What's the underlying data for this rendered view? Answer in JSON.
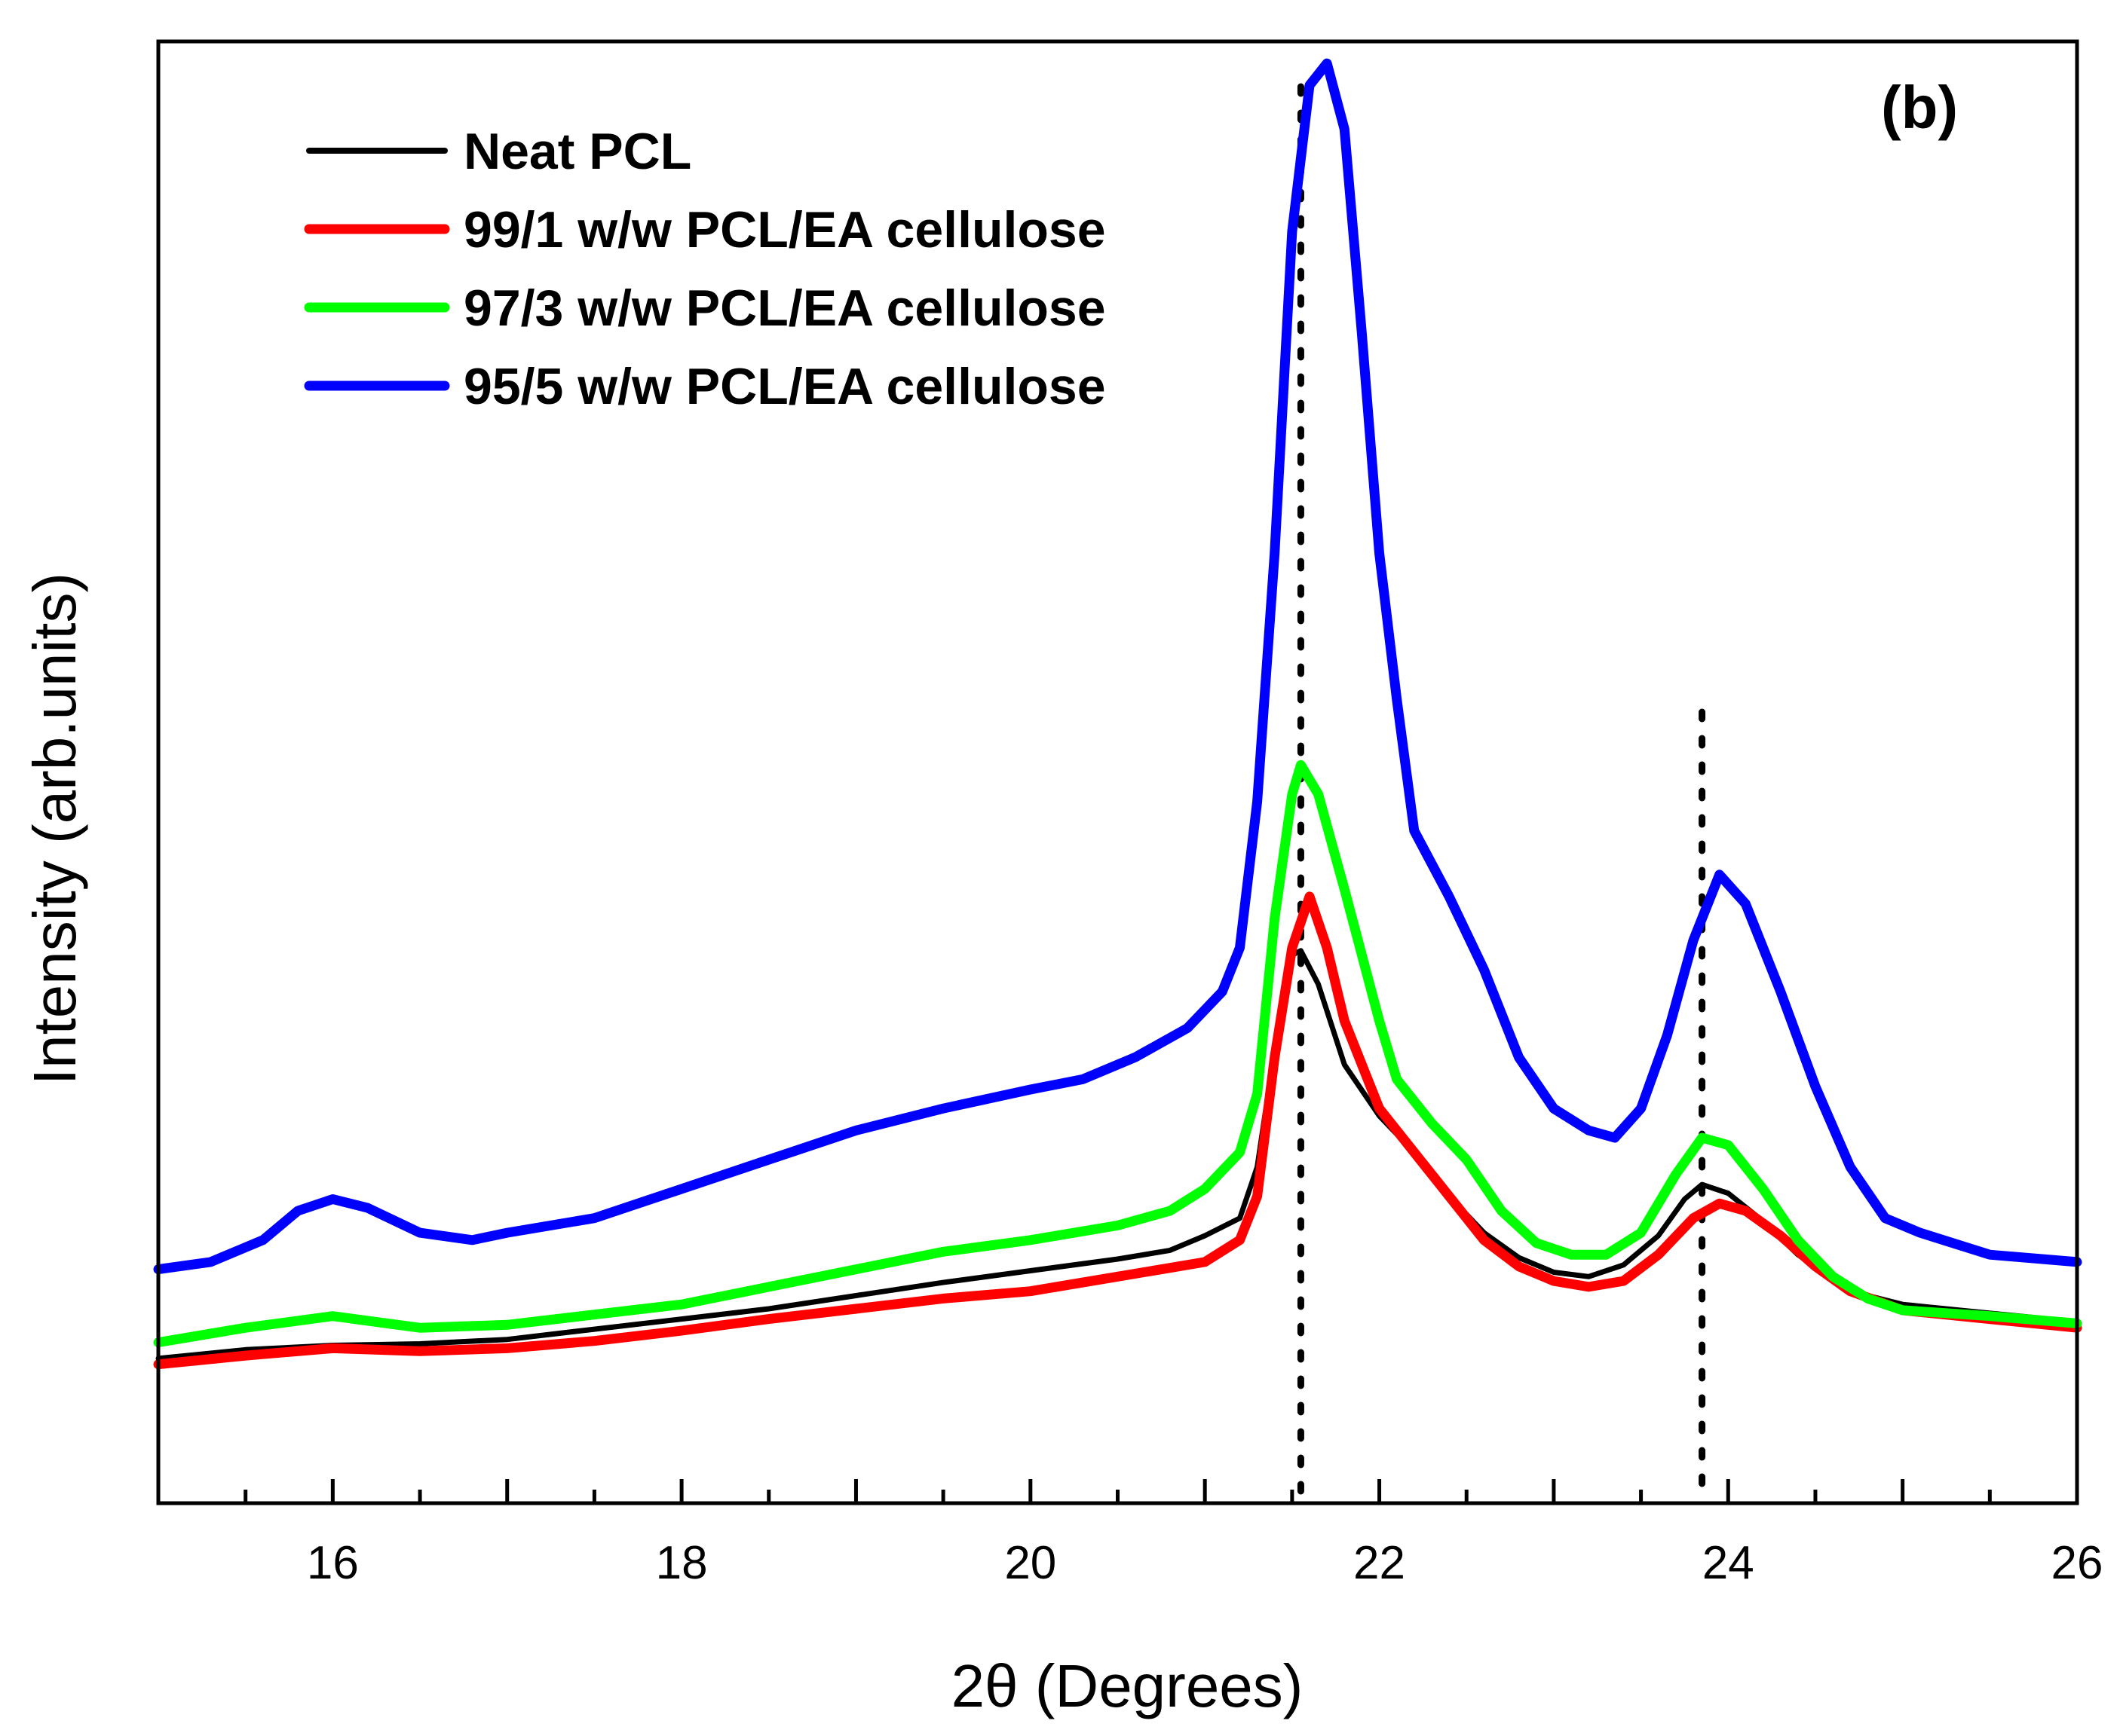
{
  "chart_data": {
    "type": "line",
    "panel_label": "(b)",
    "xlabel": "2θ (Degrees)",
    "ylabel": "Intensity (arb.units)",
    "xlim": [
      15,
      26
    ],
    "ylim": [
      0,
      100
    ],
    "x_ticks": [
      16,
      18,
      20,
      22,
      24,
      26
    ],
    "x_tick_labels": [
      "16",
      "18",
      "20",
      "22",
      24,
      "26"
    ],
    "y_ticks_shown": false,
    "legend_position": "top-left",
    "reference_lines_x": [
      21.55,
      23.85
    ],
    "reference_line_style": "dotted",
    "series": [
      {
        "name": "Neat PCL",
        "color": "#000000",
        "points": [
          [
            15.0,
            9.9
          ],
          [
            15.5,
            10.5
          ],
          [
            16.0,
            10.8
          ],
          [
            16.5,
            10.9
          ],
          [
            17.0,
            11.2
          ],
          [
            17.5,
            11.9
          ],
          [
            18.0,
            12.6
          ],
          [
            18.5,
            13.3
          ],
          [
            19.0,
            14.2
          ],
          [
            19.5,
            15.1
          ],
          [
            20.0,
            15.9
          ],
          [
            20.5,
            16.7
          ],
          [
            20.8,
            17.3
          ],
          [
            21.0,
            18.3
          ],
          [
            21.2,
            19.5
          ],
          [
            21.3,
            23.0
          ],
          [
            21.4,
            31.0
          ],
          [
            21.5,
            37.5
          ],
          [
            21.55,
            37.8
          ],
          [
            21.65,
            35.5
          ],
          [
            21.8,
            30.0
          ],
          [
            22.0,
            26.5
          ],
          [
            22.2,
            24.0
          ],
          [
            22.4,
            21.0
          ],
          [
            22.6,
            18.5
          ],
          [
            22.8,
            16.8
          ],
          [
            23.0,
            15.8
          ],
          [
            23.2,
            15.5
          ],
          [
            23.4,
            16.3
          ],
          [
            23.6,
            18.3
          ],
          [
            23.75,
            20.8
          ],
          [
            23.85,
            21.8
          ],
          [
            24.0,
            21.2
          ],
          [
            24.2,
            19.3
          ],
          [
            24.4,
            17.0
          ],
          [
            24.6,
            15.3
          ],
          [
            24.8,
            14.2
          ],
          [
            25.0,
            13.6
          ],
          [
            25.5,
            13.0
          ],
          [
            26.0,
            12.4
          ]
        ]
      },
      {
        "name": "99/1 w/w PCL/EA cellulose",
        "color": "#ff0000",
        "points": [
          [
            15.0,
            9.5
          ],
          [
            15.5,
            10.1
          ],
          [
            16.0,
            10.6
          ],
          [
            16.5,
            10.4
          ],
          [
            17.0,
            10.6
          ],
          [
            17.5,
            11.1
          ],
          [
            18.0,
            11.8
          ],
          [
            18.5,
            12.6
          ],
          [
            19.0,
            13.3
          ],
          [
            19.5,
            14.0
          ],
          [
            20.0,
            14.5
          ],
          [
            20.5,
            15.5
          ],
          [
            20.8,
            16.1
          ],
          [
            21.0,
            16.5
          ],
          [
            21.2,
            18.0
          ],
          [
            21.3,
            21.0
          ],
          [
            21.4,
            30.5
          ],
          [
            21.5,
            38.0
          ],
          [
            21.6,
            41.5
          ],
          [
            21.7,
            38.0
          ],
          [
            21.8,
            33.0
          ],
          [
            22.0,
            27.0
          ],
          [
            22.2,
            24.0
          ],
          [
            22.4,
            21.0
          ],
          [
            22.6,
            18.0
          ],
          [
            22.8,
            16.2
          ],
          [
            23.0,
            15.2
          ],
          [
            23.2,
            14.8
          ],
          [
            23.4,
            15.2
          ],
          [
            23.6,
            17.0
          ],
          [
            23.8,
            19.5
          ],
          [
            23.95,
            20.5
          ],
          [
            24.1,
            20.0
          ],
          [
            24.3,
            18.3
          ],
          [
            24.5,
            16.2
          ],
          [
            24.7,
            14.5
          ],
          [
            25.0,
            13.2
          ],
          [
            25.5,
            12.6
          ],
          [
            26.0,
            12.0
          ]
        ]
      },
      {
        "name": "97/3 w/w PCL/EA cellulose",
        "color": "#00ff00",
        "points": [
          [
            15.0,
            11.0
          ],
          [
            15.5,
            12.0
          ],
          [
            16.0,
            12.8
          ],
          [
            16.5,
            12.0
          ],
          [
            17.0,
            12.2
          ],
          [
            17.5,
            12.9
          ],
          [
            18.0,
            13.6
          ],
          [
            18.5,
            14.8
          ],
          [
            19.0,
            16.0
          ],
          [
            19.5,
            17.2
          ],
          [
            20.0,
            18.0
          ],
          [
            20.5,
            19.0
          ],
          [
            20.8,
            20.0
          ],
          [
            21.0,
            21.5
          ],
          [
            21.2,
            24.0
          ],
          [
            21.3,
            28.0
          ],
          [
            21.4,
            40.0
          ],
          [
            21.5,
            48.5
          ],
          [
            21.55,
            50.5
          ],
          [
            21.65,
            48.5
          ],
          [
            21.8,
            42.0
          ],
          [
            22.0,
            33.0
          ],
          [
            22.1,
            29.0
          ],
          [
            22.3,
            26.0
          ],
          [
            22.5,
            23.5
          ],
          [
            22.7,
            20.0
          ],
          [
            22.9,
            17.8
          ],
          [
            23.1,
            17.0
          ],
          [
            23.3,
            17.0
          ],
          [
            23.5,
            18.5
          ],
          [
            23.7,
            22.5
          ],
          [
            23.85,
            25.0
          ],
          [
            24.0,
            24.5
          ],
          [
            24.2,
            21.5
          ],
          [
            24.4,
            18.0
          ],
          [
            24.6,
            15.5
          ],
          [
            24.8,
            14.0
          ],
          [
            25.0,
            13.2
          ],
          [
            25.5,
            12.8
          ],
          [
            26.0,
            12.3
          ]
        ]
      },
      {
        "name": "95/5 w/w PCL/EA cellulose",
        "color": "#0000ff",
        "points": [
          [
            15.0,
            16.0
          ],
          [
            15.3,
            16.5
          ],
          [
            15.6,
            18.0
          ],
          [
            15.8,
            20.0
          ],
          [
            16.0,
            20.8
          ],
          [
            16.2,
            20.2
          ],
          [
            16.5,
            18.5
          ],
          [
            16.8,
            18.0
          ],
          [
            17.0,
            18.5
          ],
          [
            17.5,
            19.5
          ],
          [
            18.0,
            21.5
          ],
          [
            18.5,
            23.5
          ],
          [
            19.0,
            25.5
          ],
          [
            19.5,
            27.0
          ],
          [
            20.0,
            28.3
          ],
          [
            20.3,
            29.0
          ],
          [
            20.6,
            30.5
          ],
          [
            20.9,
            32.5
          ],
          [
            21.1,
            35.0
          ],
          [
            21.2,
            38.0
          ],
          [
            21.3,
            48.0
          ],
          [
            21.4,
            65.0
          ],
          [
            21.5,
            87.0
          ],
          [
            21.6,
            97.0
          ],
          [
            21.7,
            98.5
          ],
          [
            21.8,
            94.0
          ],
          [
            21.9,
            80.0
          ],
          [
            22.0,
            65.0
          ],
          [
            22.1,
            55.0
          ],
          [
            22.2,
            46.0
          ],
          [
            22.4,
            41.5
          ],
          [
            22.6,
            36.5
          ],
          [
            22.8,
            30.5
          ],
          [
            23.0,
            27.0
          ],
          [
            23.2,
            25.5
          ],
          [
            23.35,
            25.0
          ],
          [
            23.5,
            27.0
          ],
          [
            23.65,
            32.0
          ],
          [
            23.8,
            38.5
          ],
          [
            23.95,
            43.0
          ],
          [
            24.1,
            41.0
          ],
          [
            24.3,
            35.0
          ],
          [
            24.5,
            28.5
          ],
          [
            24.7,
            23.0
          ],
          [
            24.9,
            19.5
          ],
          [
            25.1,
            18.5
          ],
          [
            25.5,
            17.0
          ],
          [
            26.0,
            16.5
          ]
        ]
      }
    ]
  }
}
